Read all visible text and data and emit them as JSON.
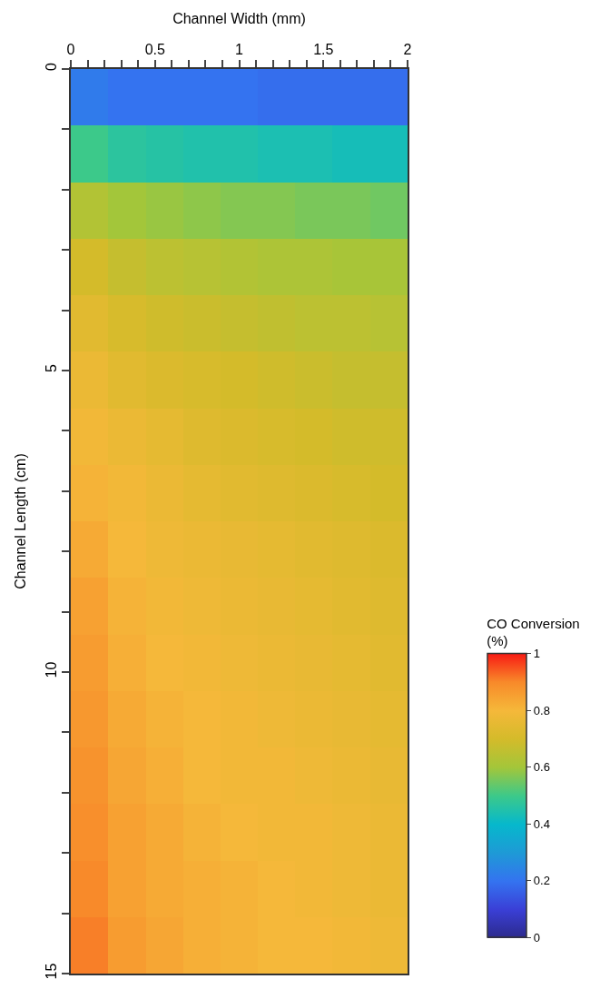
{
  "chart_data": {
    "type": "heatmap",
    "xlabel": "Channel Width (mm)",
    "ylabel": "Channel Length (cm)",
    "clabel": "CO Conversion\n(%)",
    "x": [
      0.11,
      0.33,
      0.56,
      0.78,
      1,
      1.22,
      1.44,
      1.67,
      1.89
    ],
    "xlim": [
      0,
      2
    ],
    "ylim": [
      15,
      0
    ],
    "clim": [
      0,
      1
    ],
    "xticks": [
      0,
      {
        "value": 0.1,
        "label": null
      },
      {
        "value": 0.2,
        "label": null
      },
      {
        "value": 0.3,
        "label": null
      },
      {
        "value": 0.4,
        "label": null
      },
      0.5,
      {
        "value": 0.6,
        "label": null
      },
      {
        "value": 0.7,
        "label": null
      },
      {
        "value": 0.8,
        "label": null
      },
      {
        "value": 0.9,
        "label": null
      },
      1,
      {
        "value": 1.1,
        "label": null
      },
      {
        "value": 1.2,
        "label": null
      },
      {
        "value": 1.3,
        "label": null
      },
      {
        "value": 1.4,
        "label": null
      },
      1.5,
      {
        "value": 1.6,
        "label": null
      },
      {
        "value": 1.7,
        "label": null
      },
      {
        "value": 1.8,
        "label": null
      },
      {
        "value": 1.9,
        "label": null
      },
      2
    ],
    "yticks": [
      0,
      {
        "value": 1,
        "label": null
      },
      {
        "value": 2,
        "label": null
      },
      {
        "value": 3,
        "label": null
      },
      {
        "value": 4,
        "label": null
      },
      5,
      {
        "value": 6,
        "label": null
      },
      {
        "value": 7,
        "label": null
      },
      {
        "value": 8,
        "label": null
      },
      {
        "value": 9,
        "label": null
      },
      10,
      {
        "value": 11,
        "label": null
      },
      {
        "value": 12,
        "label": null
      },
      {
        "value": 13,
        "label": null
      },
      {
        "value": 14,
        "label": null
      },
      15
    ],
    "cticks": [
      0,
      0.2,
      0.4,
      0.6,
      0.8,
      1
    ],
    "cells": [
      [
        0.22,
        0.2,
        0.2,
        0.2,
        0.2,
        0.19,
        0.19,
        0.19,
        0.19
      ],
      [
        0.5,
        0.47,
        0.46,
        0.45,
        0.45,
        0.44,
        0.44,
        0.43,
        0.43
      ],
      [
        0.63,
        0.6,
        0.59,
        0.58,
        0.57,
        0.57,
        0.56,
        0.56,
        0.55
      ],
      [
        0.7,
        0.67,
        0.65,
        0.64,
        0.63,
        0.62,
        0.62,
        0.61,
        0.61
      ],
      [
        0.74,
        0.71,
        0.69,
        0.68,
        0.67,
        0.66,
        0.65,
        0.65,
        0.64
      ],
      [
        0.77,
        0.74,
        0.72,
        0.71,
        0.7,
        0.69,
        0.68,
        0.67,
        0.67
      ],
      [
        0.79,
        0.77,
        0.75,
        0.73,
        0.72,
        0.71,
        0.7,
        0.69,
        0.69
      ],
      [
        0.81,
        0.79,
        0.77,
        0.75,
        0.74,
        0.73,
        0.72,
        0.71,
        0.7
      ],
      [
        0.83,
        0.8,
        0.78,
        0.77,
        0.76,
        0.75,
        0.74,
        0.73,
        0.72
      ],
      [
        0.85,
        0.81,
        0.79,
        0.78,
        0.77,
        0.76,
        0.75,
        0.74,
        0.73
      ],
      [
        0.86,
        0.82,
        0.8,
        0.79,
        0.78,
        0.77,
        0.76,
        0.75,
        0.74
      ],
      [
        0.87,
        0.83,
        0.81,
        0.8,
        0.79,
        0.78,
        0.77,
        0.76,
        0.75
      ],
      [
        0.88,
        0.84,
        0.82,
        0.8,
        0.79,
        0.79,
        0.78,
        0.77,
        0.76
      ],
      [
        0.89,
        0.85,
        0.83,
        0.81,
        0.8,
        0.79,
        0.79,
        0.78,
        0.77
      ],
      [
        0.9,
        0.85,
        0.83,
        0.82,
        0.81,
        0.8,
        0.79,
        0.78,
        0.77
      ],
      [
        0.91,
        0.86,
        0.84,
        0.82,
        0.81,
        0.8,
        0.8,
        0.79,
        0.78
      ]
    ]
  }
}
